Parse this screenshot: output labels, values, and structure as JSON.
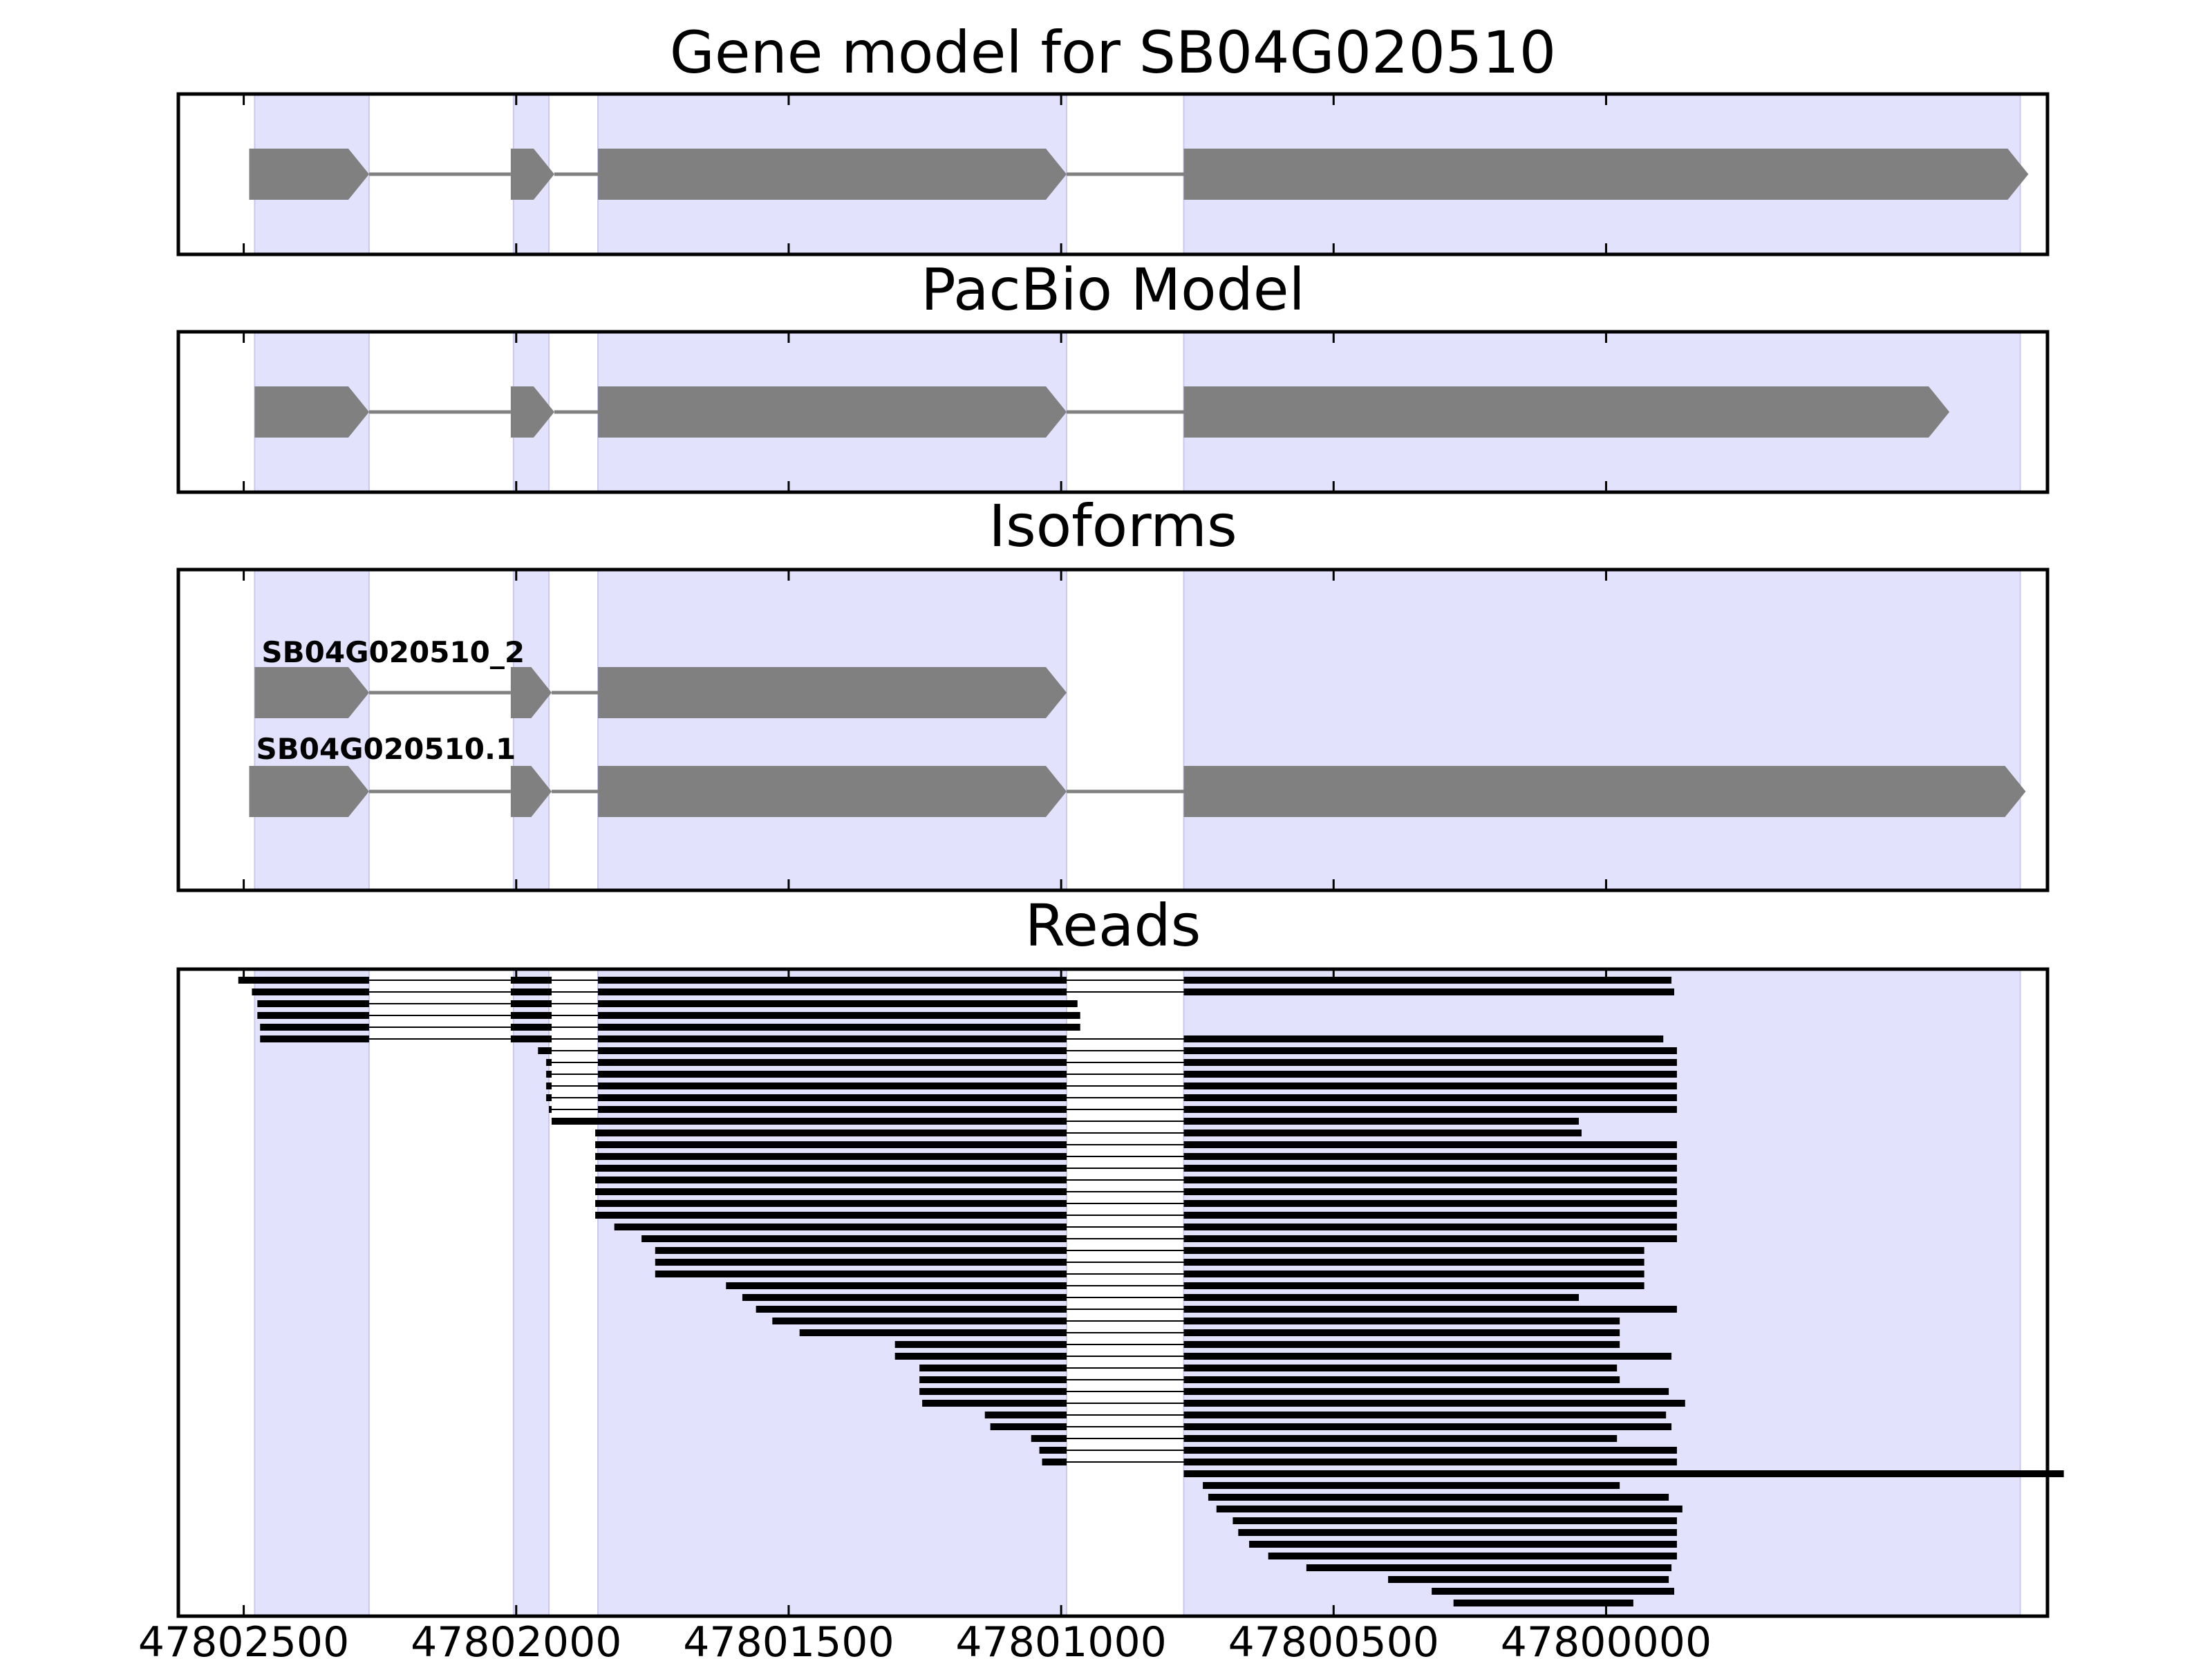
{
  "chart_data": {
    "type": "gene-model-track",
    "gene_id": "SB04G020510",
    "strand": "-",
    "x_axis": {
      "xlim": [
        47802620,
        47799190
      ],
      "ticks": [
        47802500,
        47802000,
        47801500,
        47801000,
        47800500,
        47800000
      ],
      "tick_labels": [
        "47802500",
        "47802000",
        "47801500",
        "47801000",
        "47800500",
        "47800000"
      ]
    },
    "shaded_exons": [
      [
        47802480,
        47802270
      ],
      [
        47802005,
        47801940
      ],
      [
        47801850,
        47800990
      ],
      [
        47800775,
        47799240
      ]
    ],
    "panels": [
      {
        "title": "Gene model for SB04G020510",
        "tracks": [
          {
            "label": "",
            "exons": [
              [
                47802490,
                47802270
              ],
              [
                47802010,
                47801930
              ],
              [
                47801850,
                47800990
              ],
              [
                47800775,
                47799225
              ]
            ]
          }
        ]
      },
      {
        "title": "PacBio Model",
        "tracks": [
          {
            "label": "",
            "exons": [
              [
                47802480,
                47802270
              ],
              [
                47802010,
                47801930
              ],
              [
                47801850,
                47800990
              ],
              [
                47800775,
                47799370
              ]
            ]
          }
        ]
      },
      {
        "title": "Isoforms",
        "tracks": [
          {
            "label": "SB04G020510_2",
            "exons": [
              [
                47802480,
                47802270
              ],
              [
                47802010,
                47801935
              ],
              [
                47801850,
                47800990
              ]
            ]
          },
          {
            "label": "SB04G020510.1",
            "exons": [
              [
                47802490,
                47802270
              ],
              [
                47802010,
                47801935
              ],
              [
                47801850,
                47800990
              ],
              [
                47800775,
                47799230
              ]
            ]
          }
        ]
      },
      {
        "title": "Reads",
        "reads": [
          [
            47802510,
            47799880
          ],
          [
            47802485,
            47799875
          ],
          [
            47802475,
            47800970
          ],
          [
            47802475,
            47800965
          ],
          [
            47802470,
            47800965
          ],
          [
            47802470,
            47799895
          ],
          [
            47801960,
            47799870
          ],
          [
            47801945,
            47799870
          ],
          [
            47801945,
            47799870
          ],
          [
            47801945,
            47799870
          ],
          [
            47801945,
            47799870
          ],
          [
            47801940,
            47799870
          ],
          [
            47801935,
            47800050
          ],
          [
            47801855,
            47800045
          ],
          [
            47801855,
            47799870
          ],
          [
            47801855,
            47799870
          ],
          [
            47801855,
            47799870
          ],
          [
            47801855,
            47799870
          ],
          [
            47801855,
            47799870
          ],
          [
            47801855,
            47799870
          ],
          [
            47801855,
            47799870
          ],
          [
            47801820,
            47799870
          ],
          [
            47801770,
            47799870
          ],
          [
            47801745,
            47799930
          ],
          [
            47801745,
            47799930
          ],
          [
            47801745,
            47799930
          ],
          [
            47801615,
            47799930
          ],
          [
            47801585,
            47800050
          ],
          [
            47801560,
            47799870
          ],
          [
            47801530,
            47799975
          ],
          [
            47801480,
            47799975
          ],
          [
            47801305,
            47799975
          ],
          [
            47801305,
            47799880
          ],
          [
            47801260,
            47799980
          ],
          [
            47801260,
            47799975
          ],
          [
            47801260,
            47799885
          ],
          [
            47801255,
            47799855
          ],
          [
            47801140,
            47799890
          ],
          [
            47801130,
            47799880
          ],
          [
            47801055,
            47799980
          ],
          [
            47801040,
            47799870
          ],
          [
            47801035,
            47799870
          ],
          [
            47800775,
            47799160
          ],
          [
            47800740,
            47799975
          ],
          [
            47800730,
            47799885
          ],
          [
            47800715,
            47799860
          ],
          [
            47800685,
            47799870
          ],
          [
            47800675,
            47799870
          ],
          [
            47800655,
            47799870
          ],
          [
            47800620,
            47799870
          ],
          [
            47800550,
            47799880
          ],
          [
            47800400,
            47799885
          ],
          [
            47800320,
            47799875
          ],
          [
            47800280,
            47799950
          ]
        ]
      }
    ]
  }
}
